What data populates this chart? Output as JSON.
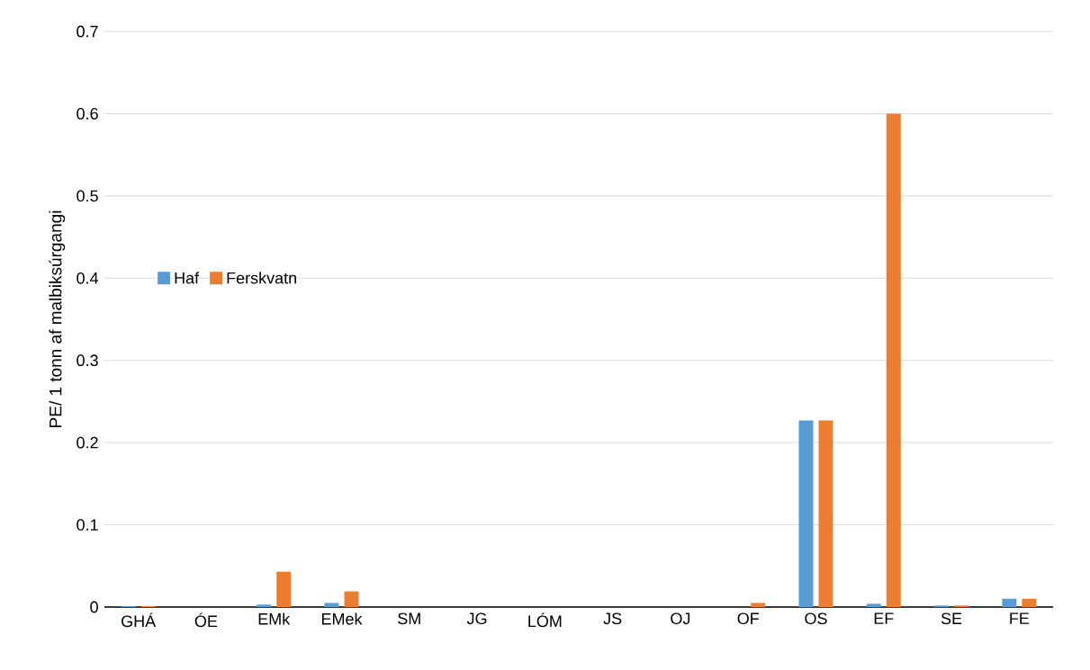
{
  "chart_data": {
    "type": "bar",
    "ylabel": "PE/ 1 tonn af malbiksúrgangi",
    "categories": [
      "GHÁ",
      "ÓE",
      "EMk",
      "EMek",
      "SM",
      "JG",
      "LÓM",
      "JS",
      "OJ",
      "OF",
      "OS",
      "EF",
      "SE",
      "FE"
    ],
    "series": [
      {
        "name": "Haf",
        "color": "#5b9bd5",
        "values": [
          0.001,
          0,
          0.003,
          0.005,
          0,
          0,
          0,
          0,
          0,
          0,
          0.227,
          0.004,
          0.002,
          0.01
        ]
      },
      {
        "name": "Ferskvatn",
        "color": "#ed7d31",
        "values": [
          0.001,
          0,
          0.043,
          0.019,
          0,
          0,
          0,
          0,
          0,
          0.005,
          0.227,
          0.6,
          0.002,
          0.01
        ]
      }
    ],
    "ylim": [
      0,
      0.7
    ],
    "yticks": [
      0,
      0.1,
      0.2,
      0.3,
      0.4,
      0.5,
      0.6,
      0.7
    ],
    "grid": "y",
    "legend": "left"
  }
}
